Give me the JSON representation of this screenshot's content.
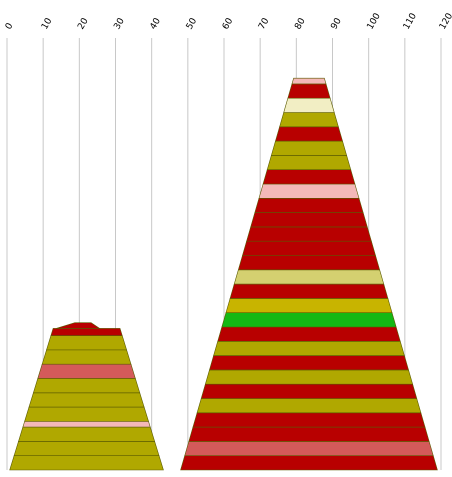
{
  "chart_data": {
    "type": "area",
    "title": "",
    "xlabel": "",
    "ylabel": "",
    "xlim": [
      0,
      120
    ],
    "x_ticks": [
      "0",
      "10",
      "20",
      "30",
      "40",
      "50",
      "60",
      "70",
      "80",
      "90",
      "100",
      "110",
      "120"
    ],
    "grid": true,
    "legend": "none",
    "colors": {
      "red": "#b80000",
      "olive": "#b0a800",
      "salmon": "#d45a5a",
      "pink": "#f4b8b8",
      "cream": "#f2eec4",
      "khaki": "#d4d070",
      "green": "#14b814",
      "gold": "#c8b400"
    },
    "stacks": [
      {
        "base_width": 42.5,
        "top_width": 18.5,
        "center": 22.0,
        "layers": [
          {
            "color": "olive",
            "rel": 1.0
          },
          {
            "color": "olive",
            "rel": 1.0
          },
          {
            "color": "olive",
            "rel": 1.0
          },
          {
            "color": "pink",
            "rel": 0.4
          },
          {
            "color": "olive",
            "rel": 1.0
          },
          {
            "color": "olive",
            "rel": 1.0
          },
          {
            "color": "olive",
            "rel": 1.0
          },
          {
            "color": "salmon",
            "rel": 1.0
          },
          {
            "color": "olive",
            "rel": 1.0
          },
          {
            "color": "olive",
            "rel": 1.0
          },
          {
            "color": "red",
            "rel": 0.5
          }
        ],
        "cap": {
          "color": "red",
          "width": 4.5,
          "offset": -1.0,
          "rel": 0.25
        }
      },
      {
        "base_width": 71.0,
        "top_width": 8.5,
        "center": 83.5,
        "layers": [
          {
            "color": "red",
            "rel": 1.0
          },
          {
            "color": "salmon",
            "rel": 1.0
          },
          {
            "color": "red",
            "rel": 1.0
          },
          {
            "color": "red",
            "rel": 1.0
          },
          {
            "color": "olive",
            "rel": 1.0
          },
          {
            "color": "red",
            "rel": 1.0
          },
          {
            "color": "olive",
            "rel": 1.0
          },
          {
            "color": "red",
            "rel": 1.0
          },
          {
            "color": "olive",
            "rel": 1.0
          },
          {
            "color": "red",
            "rel": 1.0
          },
          {
            "color": "green",
            "rel": 1.0
          },
          {
            "color": "gold",
            "rel": 1.0
          },
          {
            "color": "red",
            "rel": 1.0
          },
          {
            "color": "khaki",
            "rel": 1.0
          },
          {
            "color": "red",
            "rel": 1.0
          },
          {
            "color": "red",
            "rel": 1.0
          },
          {
            "color": "red",
            "rel": 1.0
          },
          {
            "color": "red",
            "rel": 1.0
          },
          {
            "color": "red",
            "rel": 1.0
          },
          {
            "color": "pink",
            "rel": 1.0
          },
          {
            "color": "red",
            "rel": 1.0
          },
          {
            "color": "olive",
            "rel": 1.0
          },
          {
            "color": "olive",
            "rel": 1.0
          },
          {
            "color": "red",
            "rel": 1.0
          },
          {
            "color": "olive",
            "rel": 1.0
          },
          {
            "color": "cream",
            "rel": 1.0
          },
          {
            "color": "red",
            "rel": 1.0
          },
          {
            "color": "pink",
            "rel": 0.4
          }
        ]
      }
    ]
  }
}
